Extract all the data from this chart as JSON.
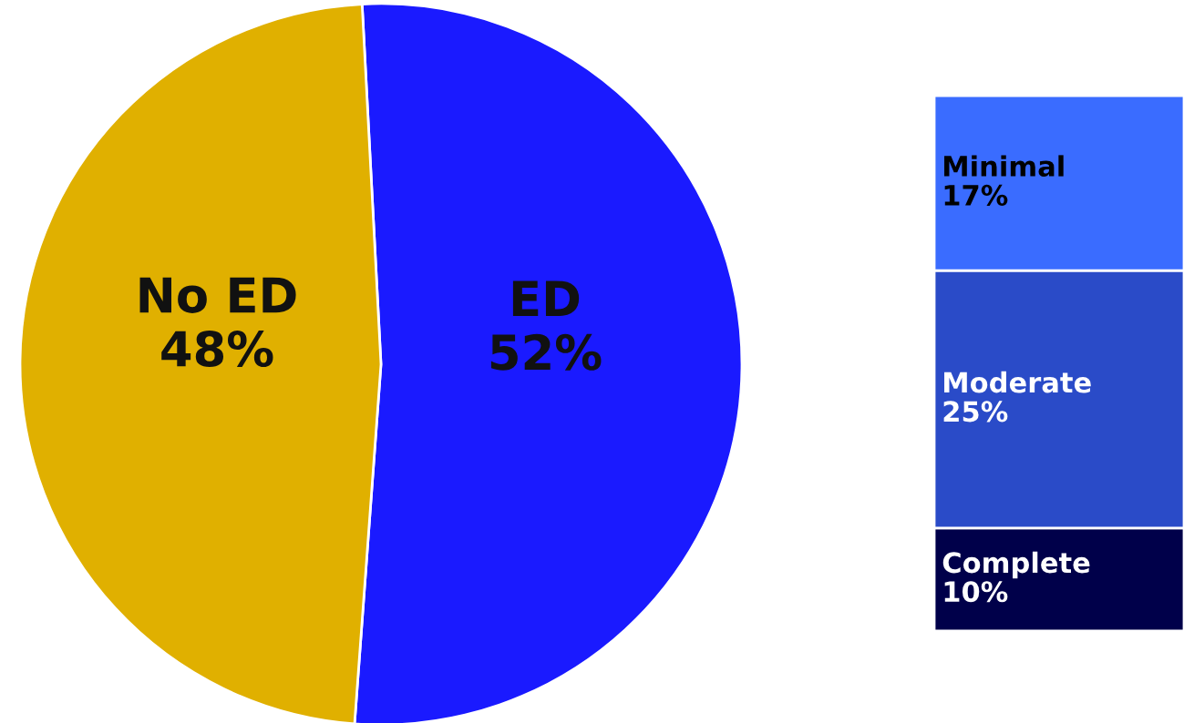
{
  "chart_data": [
    {
      "type": "pie",
      "categories": [
        "ED",
        "No ED"
      ],
      "values": [
        52,
        48
      ],
      "colors": [
        "#1a1aff",
        "#e0b000"
      ],
      "value_labels": [
        "52%",
        "48%"
      ],
      "legend": false
    },
    {
      "type": "bar",
      "stacked": true,
      "categories": [
        null
      ],
      "legend": false,
      "series": [
        {
          "name": "Complete",
          "color": "#00004a",
          "values": [
            10
          ],
          "value_labels": [
            "10%"
          ]
        },
        {
          "name": "Moderate",
          "color": "#2a4bc8",
          "values": [
            25
          ],
          "value_labels": [
            "25%"
          ]
        },
        {
          "name": "Minimal",
          "color": "#3a6cff",
          "values": [
            17
          ],
          "value_labels": [
            "17%"
          ]
        }
      ]
    }
  ]
}
